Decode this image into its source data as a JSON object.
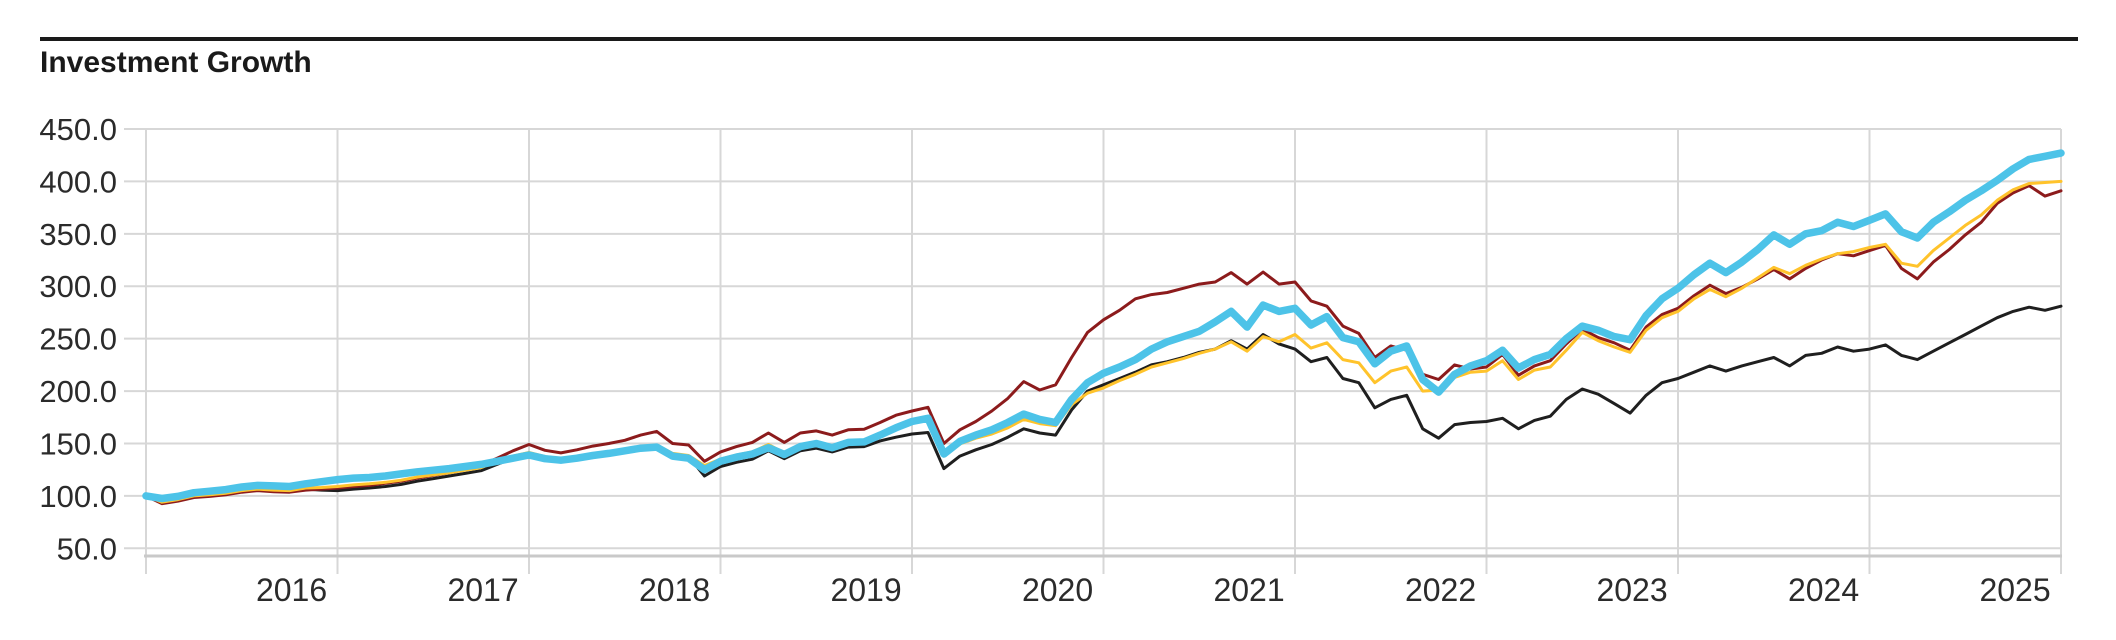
{
  "header": {
    "title": "Investment Growth"
  },
  "colors": {
    "title_text": "#1a1a1a",
    "axis_text": "#2b2b2b",
    "gridline": "#d7d7d7",
    "baseline": "#c9c9c9",
    "series_blue": "#4DC3E8",
    "series_maroon": "#8C1B1C",
    "series_yellow": "#FFC32B",
    "series_black": "#1F1F1F"
  },
  "chart_data": {
    "type": "line",
    "title": "Investment Growth",
    "grid": true,
    "legend_position": "none",
    "xlabel": "",
    "ylabel": "",
    "x_axis": {
      "tick_labels": [
        "2016",
        "2017",
        "2018",
        "2019",
        "2020",
        "2021",
        "2022",
        "2023",
        "2024",
        "2025"
      ],
      "years_spanned": 10,
      "points_per_year": 12,
      "label_offset_fraction_into_year": 0.76
    },
    "y_axis": {
      "min": 50,
      "max": 450,
      "step": 50,
      "tick_labels": [
        "50.0",
        "100.0",
        "150.0",
        "200.0",
        "250.0",
        "300.0",
        "350.0",
        "400.0",
        "450.0"
      ]
    },
    "base_value": 100,
    "series": [
      {
        "id": "series-blue",
        "color_key": "series_blue",
        "color": "#4DC3E8",
        "stroke_width": 7.5,
        "values": [
          100,
          97.5,
          99.5,
          103,
          104.5,
          106,
          108.5,
          110,
          109.5,
          109,
          111.5,
          113.5,
          115.5,
          117,
          117.5,
          119,
          121,
          123,
          124.5,
          126,
          128,
          130,
          133,
          136,
          139,
          135.5,
          134,
          136,
          138.5,
          140.5,
          143,
          145.5,
          146.5,
          138,
          136,
          125,
          133,
          137,
          140,
          146,
          139.5,
          147,
          150,
          146,
          151,
          151.5,
          158,
          165,
          171,
          174,
          140,
          152,
          158,
          163,
          170,
          178,
          173,
          170,
          192,
          208,
          217,
          223,
          230,
          240,
          247,
          252,
          257,
          266,
          276,
          261,
          282,
          276,
          279,
          263,
          271,
          251,
          247,
          226,
          238,
          243,
          211,
          199,
          216,
          224,
          229,
          239,
          222,
          230,
          235,
          250,
          262,
          258,
          252,
          249,
          272,
          288,
          298,
          311,
          322,
          313,
          323,
          335,
          349,
          340,
          350,
          353,
          361,
          357,
          363,
          369,
          352,
          346,
          361,
          371,
          382,
          391,
          401,
          412,
          421,
          424,
          427
        ]
      },
      {
        "id": "series-maroon",
        "color_key": "series_maroon",
        "color": "#8C1B1C",
        "stroke_width": 3,
        "values": [
          100,
          92.5,
          95,
          98.5,
          99.5,
          101,
          103.5,
          105,
          104,
          103.5,
          105.5,
          106.5,
          107.5,
          109,
          110,
          112,
          114,
          117,
          119.5,
          122,
          125,
          129,
          136,
          143,
          149,
          143.5,
          141,
          144,
          147.5,
          150,
          153,
          158,
          161.5,
          150,
          148.5,
          133,
          142,
          147,
          151,
          160,
          151,
          160,
          162,
          158,
          163,
          163.5,
          170,
          177,
          181,
          184.5,
          150,
          163,
          171,
          181,
          193,
          209,
          201,
          206,
          232,
          256,
          268,
          277,
          288,
          292,
          294,
          298,
          302,
          304,
          313,
          302,
          313.5,
          302,
          304,
          286,
          281,
          262,
          255,
          232,
          243,
          239,
          216,
          211,
          225,
          221,
          223,
          235,
          215,
          224,
          229,
          245,
          259,
          251,
          246,
          239,
          261,
          273,
          279,
          291,
          301,
          293,
          299,
          307,
          316,
          307,
          317,
          325,
          331,
          329,
          334,
          339,
          317,
          307,
          323,
          335,
          349,
          361,
          379,
          389,
          396,
          386,
          391
        ]
      },
      {
        "id": "series-yellow",
        "color_key": "series_yellow",
        "color": "#FFC32B",
        "stroke_width": 3,
        "values": [
          100,
          94,
          96.5,
          100,
          101,
          102.5,
          105,
          106.5,
          105.5,
          105,
          107.5,
          108,
          109,
          110.5,
          111.5,
          113,
          115,
          118,
          120,
          122,
          124.5,
          127,
          133,
          138,
          141.5,
          137.5,
          135.5,
          137.5,
          140,
          142,
          144.5,
          147,
          148.5,
          140.5,
          138.5,
          129,
          135,
          139,
          142,
          149,
          141,
          148,
          150.5,
          146.5,
          151.5,
          152,
          158.5,
          164,
          169.5,
          172.5,
          138,
          149.5,
          155,
          159,
          165,
          173,
          169,
          167,
          187,
          198,
          203,
          210,
          216,
          223,
          227,
          231,
          236,
          240,
          247,
          238,
          252,
          247,
          254,
          241,
          246,
          230,
          227,
          208,
          219,
          223,
          200,
          201,
          213,
          218,
          219,
          229,
          211,
          220,
          223,
          239,
          256,
          248,
          242,
          237,
          258,
          270,
          276,
          288,
          297,
          290,
          298,
          308,
          318,
          312,
          320,
          326,
          331,
          333,
          337,
          340,
          322,
          319,
          334,
          346,
          358,
          368,
          382,
          392,
          398,
          399,
          400
        ]
      },
      {
        "id": "series-black",
        "color_key": "series_black",
        "color": "#1F1F1F",
        "stroke_width": 3,
        "values": [
          100,
          93,
          95.5,
          99,
          100,
          101.5,
          104,
          105.5,
          104.5,
          104,
          106.5,
          105.5,
          105,
          106.5,
          107.5,
          109,
          111,
          114,
          116.5,
          119,
          121.5,
          124,
          130,
          136,
          139.5,
          136,
          134,
          136,
          139,
          141,
          143.5,
          146,
          147.5,
          139,
          137.5,
          119,
          128,
          132,
          135,
          143,
          135.5,
          143,
          145.5,
          142,
          146.5,
          147,
          152.5,
          156,
          159,
          160.5,
          126,
          138,
          144,
          149,
          156,
          164,
          160,
          158,
          182,
          200,
          206,
          212,
          218,
          225,
          228,
          232,
          237,
          240,
          248,
          240,
          254,
          245,
          240,
          228,
          232,
          212,
          208,
          184,
          192,
          196,
          164,
          155,
          168,
          170,
          171,
          174,
          164,
          172,
          176,
          192,
          202,
          197,
          188,
          179,
          196,
          208,
          212,
          218,
          224,
          219,
          224,
          228,
          232,
          224,
          234,
          236,
          242,
          238,
          240,
          244,
          234,
          230,
          238,
          246,
          254,
          262,
          270,
          276,
          280,
          277,
          281
        ]
      }
    ]
  }
}
